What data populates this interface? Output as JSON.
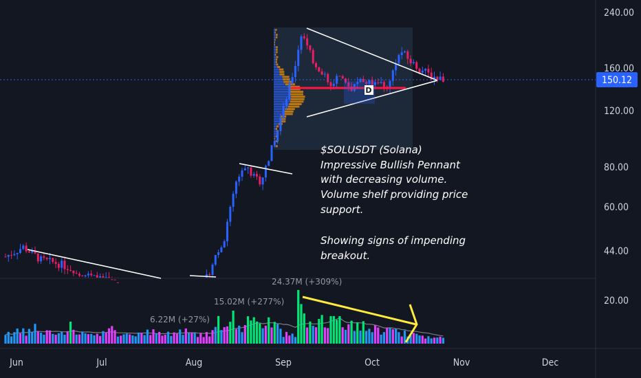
{
  "chart_data": {
    "type": "candlestick",
    "symbol": "$SOLUSDT (Solana)",
    "price_axis": {
      "scale": "log",
      "ticks": [
        "240.00",
        "160.00",
        "120.00",
        "80.00",
        "60.00",
        "44.00"
      ],
      "tick_values": [
        240,
        160,
        120,
        80,
        60,
        44
      ]
    },
    "volume_axis": {
      "ticks": [
        "20.00"
      ],
      "tick_values": [
        20
      ]
    },
    "time_axis": {
      "ticks": [
        "Jun",
        "Jul",
        "Aug",
        "Sep",
        "Oct",
        "Nov",
        "Dec"
      ]
    },
    "last_price": {
      "label": "150.12",
      "value": 150.12,
      "color": "#2962ff"
    },
    "volume_labels": [
      {
        "text": "6.22M (+27%)",
        "month": "Jul-end"
      },
      {
        "text": "15.02M (+277%)",
        "month": "Aug-mid"
      },
      {
        "text": "24.37M (+309%)",
        "month": "Sep-early"
      }
    ],
    "annotation": {
      "lines": [
        "$SOLUSDT (Solana)",
        "Impressive Bullish Pennant",
        "with decreasing volume.",
        "Volume shelf providing price",
        "support.",
        "",
        "Showing signs of impending",
        "breakout."
      ]
    },
    "pattern_marker": "D",
    "colors": {
      "background": "#131722",
      "bull": "#2962ff",
      "bear": "#e91e63",
      "volume_up": "#00e676",
      "volume_down": "#e040fb",
      "volume_neutral": "#2196f3",
      "support_line": "#ff1744",
      "trend_lines": "#ffffff",
      "volume_arrow": "#ffeb3b",
      "volume_profile_a": "#ff9800",
      "volume_profile_b": "#2962ff"
    }
  }
}
